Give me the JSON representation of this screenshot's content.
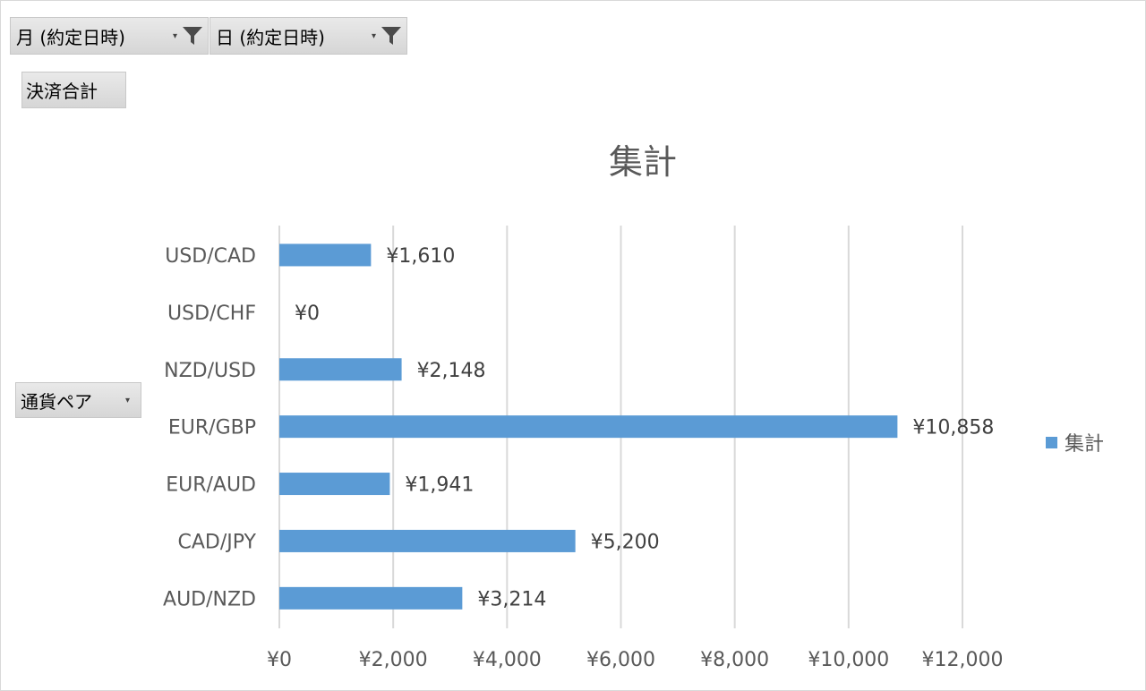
{
  "filters": {
    "month_label": "月 (約定日時)",
    "day_label": "日 (約定日時)"
  },
  "value_field_label": "決済合計",
  "row_field_label": "通貨ペア",
  "icons": {
    "filter": "funnel-icon",
    "dropdown": "dropdown-arrow-icon"
  },
  "colors": {
    "bar": "#5b9bd5"
  },
  "chart_data": {
    "type": "bar",
    "orientation": "horizontal",
    "title": "集計",
    "categories": [
      "USD/CAD",
      "USD/CHF",
      "NZD/USD",
      "EUR/GBP",
      "EUR/AUD",
      "CAD/JPY",
      "AUD/NZD"
    ],
    "series": [
      {
        "name": "集計",
        "values": [
          1610,
          0,
          2148,
          10858,
          1941,
          5200,
          3214
        ],
        "labels": [
          "¥1,610",
          "¥0",
          "¥2,148",
          "¥10,858",
          "¥1,941",
          "¥5,200",
          "¥3,214"
        ]
      }
    ],
    "xlim": [
      0,
      12000
    ],
    "x_ticks": [
      0,
      2000,
      4000,
      6000,
      8000,
      10000,
      12000
    ],
    "x_tick_labels": [
      "¥0",
      "¥2,000",
      "¥4,000",
      "¥6,000",
      "¥8,000",
      "¥10,000",
      "¥12,000"
    ],
    "grid": true,
    "legend": "right"
  }
}
